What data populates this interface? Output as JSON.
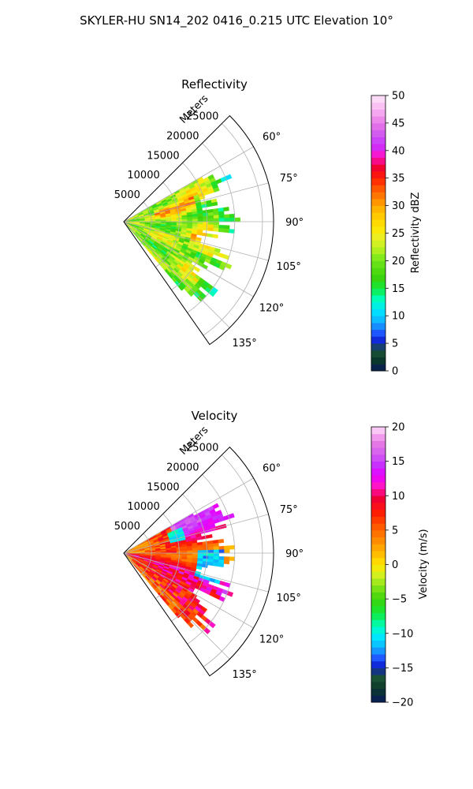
{
  "figure": {
    "suptitle": "SKYLER-HU  SN14_202  0416_0.215 UTC Elevation 10°"
  },
  "chart_data": [
    {
      "type": "heatmap",
      "projection": "polar-sector",
      "title": "Reflectivity",
      "radial_axis_label": "Meters",
      "radial_range": [
        0,
        27000
      ],
      "radial_ticks": [
        5000,
        10000,
        15000,
        20000,
        25000
      ],
      "radial_tick_labels": [
        "5000",
        "10000",
        "15000",
        "20000",
        "25000"
      ],
      "azimuth_range_deg": [
        45,
        145
      ],
      "azimuth_ticks_deg": [
        60,
        75,
        90,
        105,
        120,
        135
      ],
      "azimuth_tick_labels": [
        "60°",
        "75°",
        "90°",
        "105°",
        "120°",
        "135°"
      ],
      "data_azimuth_range_deg": [
        60,
        140
      ],
      "data_range_extent_m": [
        0,
        21000
      ],
      "grid": true,
      "colorbar": {
        "label": "Reflectivity dBZ",
        "range": [
          0,
          50
        ],
        "ticks": [
          0,
          5,
          10,
          15,
          20,
          25,
          30,
          35,
          40,
          45,
          50
        ],
        "tick_labels": [
          "0",
          "5",
          "10",
          "15",
          "20",
          "25",
          "30",
          "35",
          "40",
          "45",
          "50"
        ],
        "stops": [
          {
            "v": 0,
            "color": "#0a1a5c"
          },
          {
            "v": 2,
            "color": "#0b3a2a"
          },
          {
            "v": 4,
            "color": "#1f5a3a"
          },
          {
            "v": 5,
            "color": "#0a14c8"
          },
          {
            "v": 7,
            "color": "#1e5aff"
          },
          {
            "v": 9,
            "color": "#10b4ff"
          },
          {
            "v": 11,
            "color": "#00e6ff"
          },
          {
            "v": 13,
            "color": "#00ffc0"
          },
          {
            "v": 15,
            "color": "#12e83a"
          },
          {
            "v": 17,
            "color": "#3cd20a"
          },
          {
            "v": 20,
            "color": "#6ee61a"
          },
          {
            "v": 22,
            "color": "#b4f01e"
          },
          {
            "v": 24,
            "color": "#e8f028"
          },
          {
            "v": 26,
            "color": "#ffe600"
          },
          {
            "v": 29,
            "color": "#ffbe00"
          },
          {
            "v": 31,
            "color": "#ff8c00"
          },
          {
            "v": 33,
            "color": "#ff5a00"
          },
          {
            "v": 35,
            "color": "#ff1e00"
          },
          {
            "v": 37,
            "color": "#f00032"
          },
          {
            "v": 39,
            "color": "#ff14c8"
          },
          {
            "v": 41,
            "color": "#c832ff"
          },
          {
            "v": 43,
            "color": "#d25af0"
          },
          {
            "v": 45,
            "color": "#e678e6"
          },
          {
            "v": 47,
            "color": "#f5aaf0"
          },
          {
            "v": 50,
            "color": "#ffe6fa"
          }
        ]
      }
    },
    {
      "type": "heatmap",
      "projection": "polar-sector",
      "title": "Velocity",
      "radial_axis_label": "Meters",
      "radial_range": [
        0,
        27000
      ],
      "radial_ticks": [
        5000,
        10000,
        15000,
        20000,
        25000
      ],
      "radial_tick_labels": [
        "5000",
        "10000",
        "15000",
        "20000",
        "25000"
      ],
      "azimuth_range_deg": [
        45,
        145
      ],
      "azimuth_ticks_deg": [
        60,
        75,
        90,
        105,
        120,
        135
      ],
      "azimuth_tick_labels": [
        "60°",
        "75°",
        "90°",
        "105°",
        "120°",
        "135°"
      ],
      "data_azimuth_range_deg": [
        60,
        140
      ],
      "data_range_extent_m": [
        0,
        21000
      ],
      "grid": true,
      "colorbar": {
        "label": "Velocity (m/s)",
        "range": [
          -20,
          20
        ],
        "ticks": [
          -20,
          -15,
          -10,
          -5,
          0,
          5,
          10,
          15,
          20
        ],
        "tick_labels": [
          "−20",
          "−15",
          "−10",
          "−5",
          "0",
          "5",
          "10",
          "15",
          "20"
        ],
        "stops": [
          {
            "v": -20,
            "color": "#0a1a5c"
          },
          {
            "v": -18,
            "color": "#0b3a2a"
          },
          {
            "v": -16,
            "color": "#1f5a3a"
          },
          {
            "v": -15,
            "color": "#0a14c8"
          },
          {
            "v": -13.5,
            "color": "#1e5aff"
          },
          {
            "v": -12,
            "color": "#10b4ff"
          },
          {
            "v": -10.5,
            "color": "#00e6ff"
          },
          {
            "v": -9,
            "color": "#00ffc0"
          },
          {
            "v": -7,
            "color": "#12e83a"
          },
          {
            "v": -5,
            "color": "#3cd20a"
          },
          {
            "v": -3,
            "color": "#8ce61a"
          },
          {
            "v": -1.5,
            "color": "#d2f01e"
          },
          {
            "v": 0,
            "color": "#ffe600"
          },
          {
            "v": 1.5,
            "color": "#ffbe00"
          },
          {
            "v": 3.5,
            "color": "#ff8c00"
          },
          {
            "v": 5.5,
            "color": "#ff5a00"
          },
          {
            "v": 7.5,
            "color": "#ff1e00"
          },
          {
            "v": 9.5,
            "color": "#f00032"
          },
          {
            "v": 11.5,
            "color": "#ff14c8"
          },
          {
            "v": 13,
            "color": "#e600ff"
          },
          {
            "v": 14.5,
            "color": "#c832ff"
          },
          {
            "v": 16,
            "color": "#d25af0"
          },
          {
            "v": 17.5,
            "color": "#e678e6"
          },
          {
            "v": 19,
            "color": "#f5aaf0"
          },
          {
            "v": 20,
            "color": "#ffe6fa"
          }
        ]
      }
    }
  ]
}
